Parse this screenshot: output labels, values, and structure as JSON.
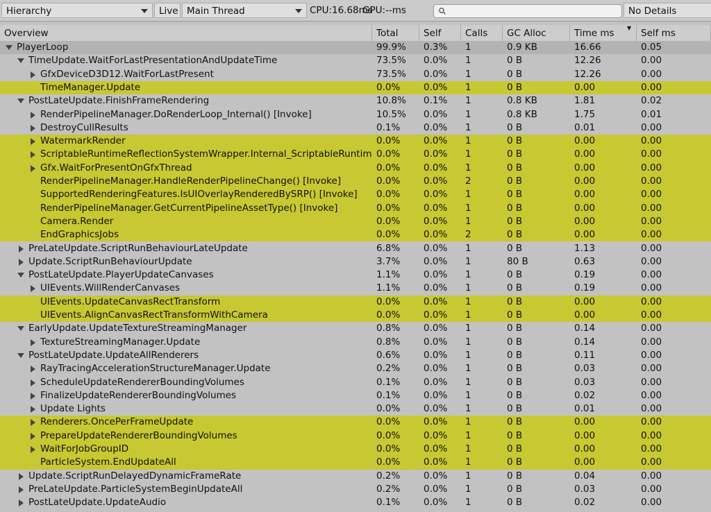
{
  "toolbar": {
    "view": "Hierarchy",
    "live": "Live",
    "thread": "Main Thread",
    "cpu": "CPU:16.68ms",
    "gpu": "GPU:--ms",
    "details": "No Details"
  },
  "columns": [
    "Overview",
    "Total",
    "Self",
    "Calls",
    "GC Alloc",
    "Time ms",
    "Self ms"
  ],
  "rows": [
    {
      "depth": 0,
      "arrow": "open",
      "highlight": false,
      "cells": [
        "PlayerLoop",
        "99.9%",
        "0.3%",
        "1",
        "0.9 KB",
        "16.66",
        "0.05"
      ]
    },
    {
      "depth": 1,
      "arrow": "open",
      "highlight": false,
      "cells": [
        "TimeUpdate.WaitForLastPresentationAndUpdateTime",
        "73.5%",
        "0.0%",
        "1",
        "0 B",
        "12.26",
        "0.00"
      ]
    },
    {
      "depth": 2,
      "arrow": "closed",
      "highlight": false,
      "cells": [
        "GfxDeviceD3D12.WaitForLastPresent",
        "73.5%",
        "0.0%",
        "1",
        "0 B",
        "12.26",
        "0.00"
      ]
    },
    {
      "depth": 2,
      "arrow": "none",
      "highlight": true,
      "cells": [
        "TimeManager.Update",
        "0.0%",
        "0.0%",
        "1",
        "0 B",
        "0.00",
        "0.00"
      ]
    },
    {
      "depth": 1,
      "arrow": "open",
      "highlight": false,
      "cells": [
        "PostLateUpdate.FinishFrameRendering",
        "10.8%",
        "0.1%",
        "1",
        "0.8 KB",
        "1.81",
        "0.02"
      ]
    },
    {
      "depth": 2,
      "arrow": "closed",
      "highlight": false,
      "cells": [
        "RenderPipelineManager.DoRenderLoop_Internal() [Invoke]",
        "10.5%",
        "0.0%",
        "1",
        "0.8 KB",
        "1.75",
        "0.01"
      ]
    },
    {
      "depth": 2,
      "arrow": "closed",
      "highlight": false,
      "cells": [
        "DestroyCullResults",
        "0.1%",
        "0.0%",
        "1",
        "0 B",
        "0.01",
        "0.00"
      ]
    },
    {
      "depth": 2,
      "arrow": "closed",
      "highlight": true,
      "cells": [
        "WatermarkRender",
        "0.0%",
        "0.0%",
        "1",
        "0 B",
        "0.00",
        "0.00"
      ]
    },
    {
      "depth": 2,
      "arrow": "closed",
      "highlight": true,
      "cells": [
        "ScriptableRuntimeReflectionSystemWrapper.Internal_ScriptableRuntim",
        "0.0%",
        "0.0%",
        "1",
        "0 B",
        "0.00",
        "0.00"
      ]
    },
    {
      "depth": 2,
      "arrow": "closed",
      "highlight": true,
      "cells": [
        "Gfx.WaitForPresentOnGfxThread",
        "0.0%",
        "0.0%",
        "1",
        "0 B",
        "0.00",
        "0.00"
      ]
    },
    {
      "depth": 2,
      "arrow": "none",
      "highlight": true,
      "cells": [
        "RenderPipelineManager.HandleRenderPipelineChange() [Invoke]",
        "0.0%",
        "0.0%",
        "2",
        "0 B",
        "0.00",
        "0.00"
      ]
    },
    {
      "depth": 2,
      "arrow": "none",
      "highlight": true,
      "cells": [
        "SupportedRenderingFeatures.IsUIOverlayRenderedBySRP() [Invoke]",
        "0.0%",
        "0.0%",
        "1",
        "0 B",
        "0.00",
        "0.00"
      ]
    },
    {
      "depth": 2,
      "arrow": "none",
      "highlight": true,
      "cells": [
        "RenderPipelineManager.GetCurrentPipelineAssetType() [Invoke]",
        "0.0%",
        "0.0%",
        "1",
        "0 B",
        "0.00",
        "0.00"
      ]
    },
    {
      "depth": 2,
      "arrow": "none",
      "highlight": true,
      "cells": [
        "Camera.Render",
        "0.0%",
        "0.0%",
        "1",
        "0 B",
        "0.00",
        "0.00"
      ]
    },
    {
      "depth": 2,
      "arrow": "none",
      "highlight": true,
      "cells": [
        "EndGraphicsJobs",
        "0.0%",
        "0.0%",
        "2",
        "0 B",
        "0.00",
        "0.00"
      ]
    },
    {
      "depth": 1,
      "arrow": "closed",
      "highlight": false,
      "cells": [
        "PreLateUpdate.ScriptRunBehaviourLateUpdate",
        "6.8%",
        "0.0%",
        "1",
        "0 B",
        "1.13",
        "0.00"
      ]
    },
    {
      "depth": 1,
      "arrow": "closed",
      "highlight": false,
      "cells": [
        "Update.ScriptRunBehaviourUpdate",
        "3.7%",
        "0.0%",
        "1",
        "80 B",
        "0.63",
        "0.00"
      ]
    },
    {
      "depth": 1,
      "arrow": "open",
      "highlight": false,
      "cells": [
        "PostLateUpdate.PlayerUpdateCanvases",
        "1.1%",
        "0.0%",
        "1",
        "0 B",
        "0.19",
        "0.00"
      ]
    },
    {
      "depth": 2,
      "arrow": "closed",
      "highlight": false,
      "cells": [
        "UIEvents.WillRenderCanvases",
        "1.1%",
        "0.0%",
        "1",
        "0 B",
        "0.19",
        "0.00"
      ]
    },
    {
      "depth": 2,
      "arrow": "none",
      "highlight": true,
      "cells": [
        "UIEvents.UpdateCanvasRectTransform",
        "0.0%",
        "0.0%",
        "1",
        "0 B",
        "0.00",
        "0.00"
      ]
    },
    {
      "depth": 2,
      "arrow": "none",
      "highlight": true,
      "cells": [
        "UIEvents.AlignCanvasRectTransformWithCamera",
        "0.0%",
        "0.0%",
        "1",
        "0 B",
        "0.00",
        "0.00"
      ]
    },
    {
      "depth": 1,
      "arrow": "open",
      "highlight": false,
      "cells": [
        "EarlyUpdate.UpdateTextureStreamingManager",
        "0.8%",
        "0.0%",
        "1",
        "0 B",
        "0.14",
        "0.00"
      ]
    },
    {
      "depth": 2,
      "arrow": "closed",
      "highlight": false,
      "cells": [
        "TextureStreamingManager.Update",
        "0.8%",
        "0.0%",
        "1",
        "0 B",
        "0.14",
        "0.00"
      ]
    },
    {
      "depth": 1,
      "arrow": "open",
      "highlight": false,
      "cells": [
        "PostLateUpdate.UpdateAllRenderers",
        "0.6%",
        "0.0%",
        "1",
        "0 B",
        "0.11",
        "0.00"
      ]
    },
    {
      "depth": 2,
      "arrow": "closed",
      "highlight": false,
      "cells": [
        "RayTracingAccelerationStructureManager.Update",
        "0.2%",
        "0.0%",
        "1",
        "0 B",
        "0.03",
        "0.00"
      ]
    },
    {
      "depth": 2,
      "arrow": "closed",
      "highlight": false,
      "cells": [
        "ScheduleUpdateRendererBoundingVolumes",
        "0.1%",
        "0.0%",
        "1",
        "0 B",
        "0.03",
        "0.00"
      ]
    },
    {
      "depth": 2,
      "arrow": "closed",
      "highlight": false,
      "cells": [
        "FinalizeUpdateRendererBoundingVolumes",
        "0.1%",
        "0.0%",
        "1",
        "0 B",
        "0.02",
        "0.00"
      ]
    },
    {
      "depth": 2,
      "arrow": "closed",
      "highlight": false,
      "cells": [
        "Update Lights",
        "0.0%",
        "0.0%",
        "1",
        "0 B",
        "0.01",
        "0.00"
      ]
    },
    {
      "depth": 2,
      "arrow": "closed",
      "highlight": true,
      "cells": [
        "Renderers.OncePerFrameUpdate",
        "0.0%",
        "0.0%",
        "1",
        "0 B",
        "0.00",
        "0.00"
      ]
    },
    {
      "depth": 2,
      "arrow": "closed",
      "highlight": true,
      "cells": [
        "PrepareUpdateRendererBoundingVolumes",
        "0.0%",
        "0.0%",
        "1",
        "0 B",
        "0.00",
        "0.00"
      ]
    },
    {
      "depth": 2,
      "arrow": "closed",
      "highlight": true,
      "cells": [
        "WaitForJobGroupID",
        "0.0%",
        "0.0%",
        "1",
        "0 B",
        "0.00",
        "0.00"
      ]
    },
    {
      "depth": 2,
      "arrow": "none",
      "highlight": true,
      "cells": [
        "ParticleSystem.EndUpdateAll",
        "0.0%",
        "0.0%",
        "1",
        "0 B",
        "0.00",
        "0.00"
      ]
    },
    {
      "depth": 1,
      "arrow": "closed",
      "highlight": false,
      "cells": [
        "Update.ScriptRunDelayedDynamicFrameRate",
        "0.2%",
        "0.0%",
        "1",
        "0 B",
        "0.04",
        "0.00"
      ]
    },
    {
      "depth": 1,
      "arrow": "closed",
      "highlight": false,
      "cells": [
        "PreLateUpdate.ParticleSystemBeginUpdateAll",
        "0.2%",
        "0.0%",
        "1",
        "0 B",
        "0.03",
        "0.00"
      ]
    },
    {
      "depth": 1,
      "arrow": "closed",
      "highlight": false,
      "cells": [
        "PostLateUpdate.UpdateAudio",
        "0.1%",
        "0.0%",
        "1",
        "0 B",
        "0.02",
        "0.00"
      ]
    }
  ]
}
